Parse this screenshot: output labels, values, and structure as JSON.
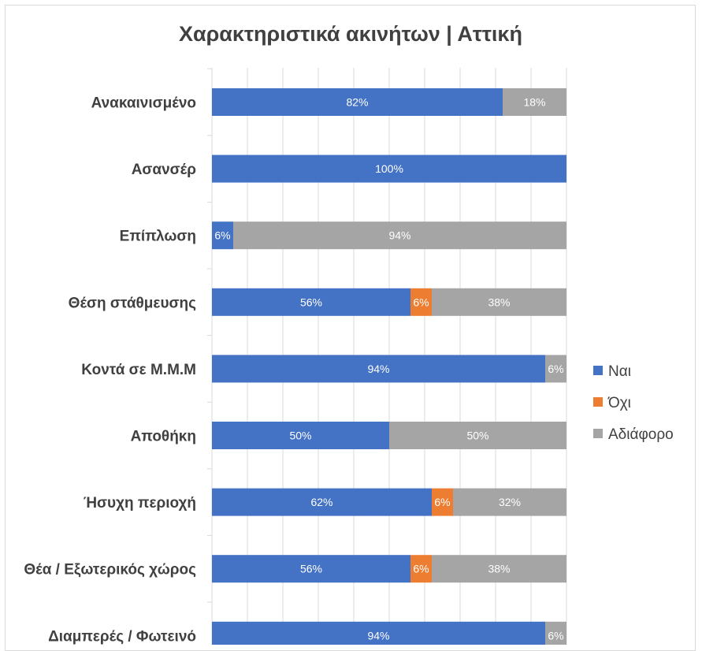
{
  "chart_data": {
    "type": "bar",
    "orientation": "horizontal",
    "stacked": "percent",
    "title": "Χαρακτηριστικά ακινήτων | Αττική",
    "xlabel": "",
    "ylabel": "",
    "xlim": [
      0,
      100
    ],
    "grid": true,
    "legend_position": "right",
    "categories": [
      "Ανακαινισμένο",
      "Ασανσέρ",
      "Επίπλωση",
      "Θέση στάθμευσης",
      "Κοντά σε Μ.Μ.Μ",
      "Αποθήκη",
      "Ήσυχη περιοχή",
      "Θέα / Εξωτερικός χώρος",
      "Διαμπερές / Φωτεινό"
    ],
    "series": [
      {
        "name": "Ναι",
        "color": "#4472c4",
        "values": [
          82,
          100,
          6,
          56,
          94,
          50,
          62,
          56,
          94
        ]
      },
      {
        "name": "Όχι",
        "color": "#ed7d31",
        "values": [
          0,
          0,
          0,
          6,
          0,
          0,
          6,
          6,
          0
        ]
      },
      {
        "name": "Αδιάφορο",
        "color": "#a5a5a5",
        "values": [
          18,
          0,
          94,
          38,
          6,
          50,
          32,
          38,
          6
        ]
      }
    ],
    "data_labels": [
      [
        "82%",
        "",
        "18%"
      ],
      [
        "100%",
        "",
        ""
      ],
      [
        "6%",
        "",
        "94%"
      ],
      [
        "56%",
        "6%",
        "38%"
      ],
      [
        "94%",
        "",
        "6%"
      ],
      [
        "50%",
        "",
        "50%"
      ],
      [
        "62%",
        "6%",
        "32%"
      ],
      [
        "56%",
        "6%",
        "38%"
      ],
      [
        "94%",
        "",
        "6%"
      ]
    ]
  }
}
